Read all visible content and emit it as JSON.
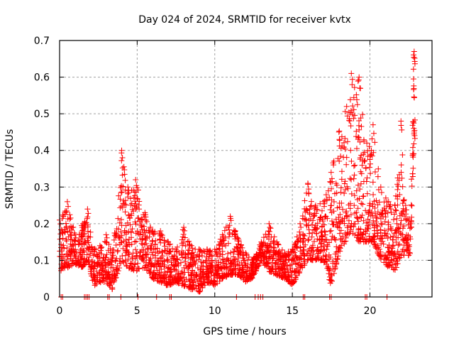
{
  "chart_data": {
    "type": "scatter",
    "title": "Day 024 of 2024, SRMTID for receiver kvtx",
    "xlabel": "GPS time / hours",
    "ylabel": "SRMTID / TECUs",
    "xlim": [
      0,
      24
    ],
    "ylim": [
      0,
      0.7
    ],
    "xticks": [
      0,
      5,
      10,
      15,
      20
    ],
    "xtick_labels": [
      "0",
      "5",
      "10",
      "15",
      "20"
    ],
    "yticks": [
      0,
      0.1,
      0.2,
      0.3,
      0.4,
      0.5,
      0.6,
      0.7
    ],
    "ytick_labels": [
      "0",
      "0.1",
      "0.2",
      "0.3",
      "0.4",
      "0.5",
      "0.6",
      "0.7"
    ],
    "grid": true,
    "legend": "none",
    "marker": "plus",
    "marker_color": "#ff0000",
    "series": [
      {
        "name": "SRMTID",
        "envelope": [
          {
            "x": 0.0,
            "low": 0.07,
            "high": 0.21
          },
          {
            "x": 0.5,
            "low": 0.08,
            "high": 0.26
          },
          {
            "x": 1.0,
            "low": 0.09,
            "high": 0.17
          },
          {
            "x": 1.5,
            "low": 0.08,
            "high": 0.2
          },
          {
            "x": 1.8,
            "low": 0.1,
            "high": 0.24
          },
          {
            "x": 2.2,
            "low": 0.03,
            "high": 0.13
          },
          {
            "x": 2.6,
            "low": 0.04,
            "high": 0.14
          },
          {
            "x": 3.0,
            "low": 0.04,
            "high": 0.17
          },
          {
            "x": 3.4,
            "low": 0.02,
            "high": 0.12
          },
          {
            "x": 4.0,
            "low": 0.1,
            "high": 0.4
          },
          {
            "x": 4.4,
            "low": 0.08,
            "high": 0.3
          },
          {
            "x": 4.9,
            "low": 0.07,
            "high": 0.32
          },
          {
            "x": 5.5,
            "low": 0.08,
            "high": 0.23
          },
          {
            "x": 6.0,
            "low": 0.05,
            "high": 0.18
          },
          {
            "x": 6.5,
            "low": 0.04,
            "high": 0.18
          },
          {
            "x": 7.0,
            "low": 0.03,
            "high": 0.15
          },
          {
            "x": 7.5,
            "low": 0.04,
            "high": 0.13
          },
          {
            "x": 8.0,
            "low": 0.03,
            "high": 0.19
          },
          {
            "x": 8.5,
            "low": 0.02,
            "high": 0.14
          },
          {
            "x": 9.0,
            "low": 0.01,
            "high": 0.13
          },
          {
            "x": 9.5,
            "low": 0.04,
            "high": 0.13
          },
          {
            "x": 10.0,
            "low": 0.03,
            "high": 0.13
          },
          {
            "x": 10.5,
            "low": 0.05,
            "high": 0.17
          },
          {
            "x": 11.0,
            "low": 0.06,
            "high": 0.22
          },
          {
            "x": 11.5,
            "low": 0.06,
            "high": 0.16
          },
          {
            "x": 12.0,
            "low": 0.04,
            "high": 0.12
          },
          {
            "x": 12.4,
            "low": 0.05,
            "high": 0.1
          },
          {
            "x": 13.0,
            "low": 0.1,
            "high": 0.15
          },
          {
            "x": 13.5,
            "low": 0.07,
            "high": 0.2
          },
          {
            "x": 14.0,
            "low": 0.06,
            "high": 0.15
          },
          {
            "x": 14.5,
            "low": 0.05,
            "high": 0.12
          },
          {
            "x": 15.0,
            "low": 0.03,
            "high": 0.13
          },
          {
            "x": 15.5,
            "low": 0.07,
            "high": 0.2
          },
          {
            "x": 16.0,
            "low": 0.1,
            "high": 0.31
          },
          {
            "x": 16.5,
            "low": 0.1,
            "high": 0.25
          },
          {
            "x": 17.0,
            "low": 0.1,
            "high": 0.26
          },
          {
            "x": 17.5,
            "low": 0.03,
            "high": 0.34
          },
          {
            "x": 18.0,
            "low": 0.12,
            "high": 0.45
          },
          {
            "x": 18.5,
            "low": 0.15,
            "high": 0.52
          },
          {
            "x": 18.8,
            "low": 0.18,
            "high": 0.61
          },
          {
            "x": 19.3,
            "low": 0.15,
            "high": 0.6
          },
          {
            "x": 19.8,
            "low": 0.15,
            "high": 0.42
          },
          {
            "x": 20.2,
            "low": 0.15,
            "high": 0.47
          },
          {
            "x": 20.7,
            "low": 0.1,
            "high": 0.3
          },
          {
            "x": 21.2,
            "low": 0.08,
            "high": 0.26
          },
          {
            "x": 21.6,
            "low": 0.07,
            "high": 0.25
          },
          {
            "x": 22.0,
            "low": 0.1,
            "high": 0.48
          },
          {
            "x": 22.3,
            "low": 0.12,
            "high": 0.25
          },
          {
            "x": 22.6,
            "low": 0.1,
            "high": 0.2
          },
          {
            "x": 22.85,
            "low": 0.43,
            "high": 0.67
          }
        ],
        "zero_points_x": [
          0.1,
          0.2,
          1.6,
          1.7,
          1.8,
          1.9,
          3.1,
          3.2,
          3.95,
          5.05,
          6.25,
          7.1,
          7.2,
          11.4,
          12.6,
          12.8,
          12.95,
          13.1,
          15.7,
          15.8,
          17.4,
          17.5,
          19.7,
          19.8,
          21.1
        ]
      }
    ]
  }
}
